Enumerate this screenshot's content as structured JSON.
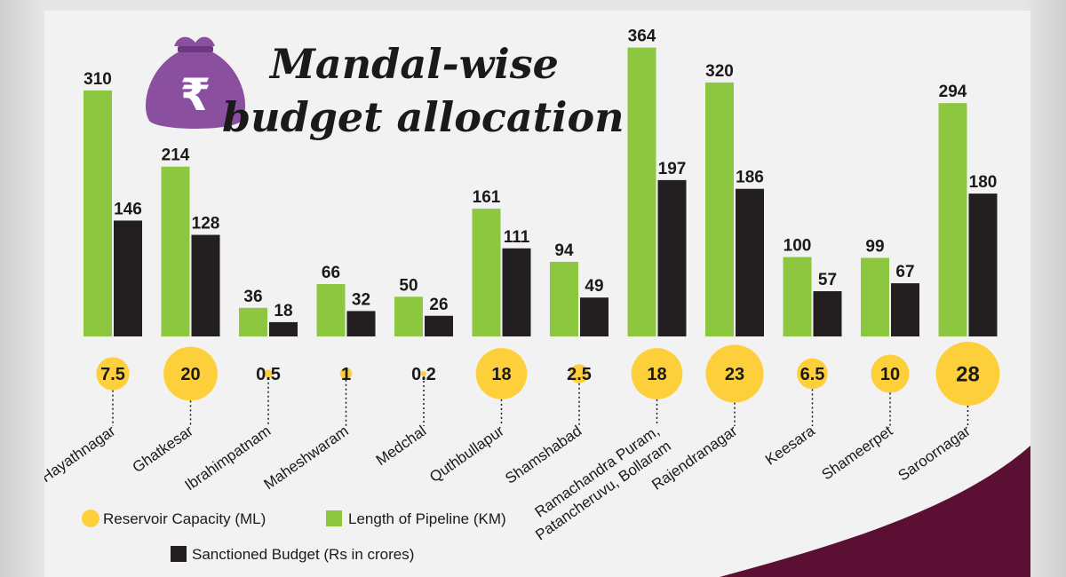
{
  "chart_data": {
    "type": "bar",
    "title_line1": "Mandal-wise",
    "title_line2": "budget allocation",
    "categories": [
      "Hayathnagar",
      "Ghatkesar",
      "Ibrahimpatnam",
      "Maheshwaram",
      "Medchal",
      "Quthbullapur",
      "Shamshabad",
      "Ramachandra Puram,",
      "Rajendranagar",
      "Keesara",
      "Shameerpet",
      "Saroornagar"
    ],
    "category_second_lines": [
      "",
      "",
      "",
      "",
      "",
      "",
      "",
      "Patancheruvu, Bollaram",
      "",
      "",
      "",
      ""
    ],
    "series": [
      {
        "name": "Length of Pipeline (KM)",
        "color": "#8dc63f",
        "values": [
          310,
          214,
          36,
          66,
          50,
          161,
          94,
          364,
          320,
          100,
          99,
          294
        ]
      },
      {
        "name": "Sanctioned Budget (Rs in crores)",
        "color": "#231f20",
        "values": [
          146,
          128,
          18,
          32,
          26,
          111,
          49,
          197,
          186,
          57,
          67,
          180
        ]
      }
    ],
    "reservoir": {
      "name": "Reservoir Capacity (ML)",
      "color": "#fdd03b",
      "values": [
        7.5,
        20,
        0.5,
        1,
        0.2,
        18,
        2.5,
        18,
        23,
        6.5,
        10,
        28
      ],
      "labels": [
        "7.5",
        "20",
        "0.5",
        "1",
        "0.2",
        "18",
        "2.5",
        "18",
        "23",
        "6.5",
        "10",
        "28"
      ]
    },
    "legend": {
      "reservoir": "Reservoir Capacity (ML)",
      "pipeline": "Length of Pipeline (KM)",
      "budget": "Sanctioned Budget (Rs in crores)"
    },
    "icon": "rupee-money-bag-icon",
    "icon_symbol": "₹",
    "accent_color": "#5b0f32",
    "bag_color": "#8b4fa0"
  }
}
